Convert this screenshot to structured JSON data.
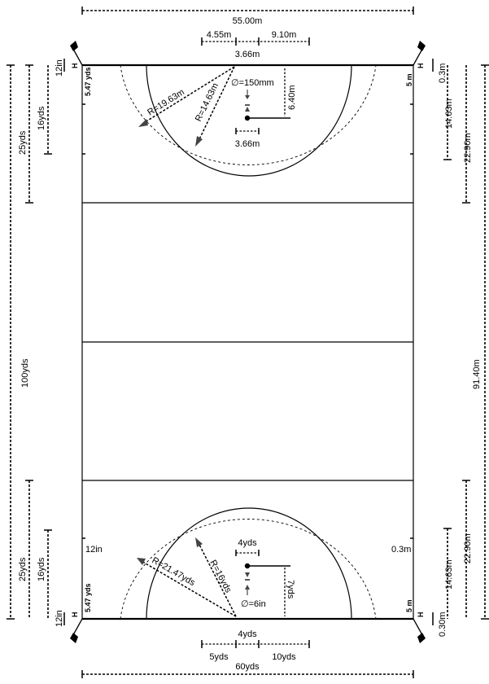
{
  "top_labels": {
    "field_width": "55.00m",
    "offset_left": "4.55m",
    "offset_right": "9.10m",
    "goal_width": "3.66m",
    "radius_outer": "R=19.63m",
    "radius_inner": "R=14.63m",
    "spot_diameter": "∅=150mm",
    "spot_distance": "6.40m",
    "spot_width": "3.66m",
    "side_right_5m": "5 m",
    "side_left_yds": "5.47 yds",
    "right_03": "0.3m",
    "right_1463": "14.63m",
    "right_2290": "22.90m",
    "left_12in": "12in",
    "left_16yds": "16yds",
    "left_25yds": "25yds",
    "h": "H"
  },
  "middle_labels": {
    "total_length_yds": "100yds",
    "total_length_m": "91.40m"
  },
  "bottom_labels": {
    "field_width": "60yds",
    "offset_left": "5yds",
    "offset_right": "10yds",
    "goal_width": "4yds",
    "radius_outer": "R=21.47yds",
    "radius_inner": "R=16yds",
    "spot_diameter": "∅=6in",
    "spot_distance": "7yds",
    "spot_width": "4yds",
    "side_right_5m": "5 m",
    "side_left_yds": "5.47 yds",
    "right_03": "0.3m",
    "right_030": "0.30m",
    "right_1463": "14.63m",
    "right_2290": "22.90m",
    "left_12in": "12in",
    "left_12in_side": "12in",
    "left_16yds": "16yds",
    "left_25yds": "25yds",
    "h": "H"
  }
}
